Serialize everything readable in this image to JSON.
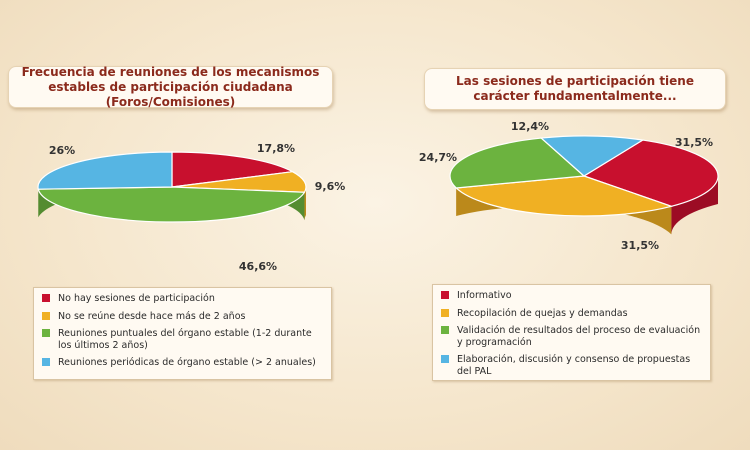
{
  "chart_data": [
    {
      "type": "pie",
      "title": "Frecuencia de reuniones de los mecanismos estables de participación ciudadana (Foros/Comisiones)",
      "values": [
        17.8,
        9.6,
        46.6,
        26
      ],
      "value_labels": [
        "17,8%",
        "9,6%",
        "46,6%",
        "26%"
      ],
      "categories": [
        "No hay sesiones de participación",
        "No se reúne desde hace más de 2 años",
        "Reuniones puntuales del órgano estable (1-2 durante los últimos 2 años)",
        "Reuniones periódicas de órgano estable (> 2 anuales)"
      ],
      "colors": [
        "#c8102e",
        "#f0b023",
        "#6cb33f",
        "#56b5e3"
      ]
    },
    {
      "type": "pie",
      "title": "Las sesiones de participación tiene carácter fundamentalmente...",
      "values": [
        31.5,
        31.5,
        24.7,
        12.4
      ],
      "value_labels": [
        "31,5%",
        "31,5%",
        "24,7%",
        "12,4%"
      ],
      "categories": [
        "Informativo",
        "Recopilación de quejas y demandas",
        "Validación de resultados del proceso de evaluación y programación",
        "Elaboración, discusión y consenso de propuestas del PAL"
      ],
      "colors": [
        "#c8102e",
        "#f0b023",
        "#6cb33f",
        "#56b5e3"
      ]
    }
  ]
}
